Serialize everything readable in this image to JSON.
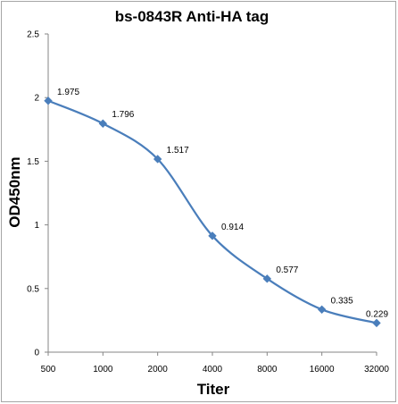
{
  "chart_data": {
    "type": "line",
    "title": "bs-0843R Anti-HA tag",
    "xlabel": "Titer",
    "ylabel": "OD450nm",
    "categories": [
      "500",
      "1000",
      "2000",
      "4000",
      "8000",
      "16000",
      "32000"
    ],
    "series": [
      {
        "values": [
          1.975,
          1.796,
          1.517,
          0.914,
          0.577,
          0.335,
          0.229
        ],
        "labels": [
          "1.975",
          "1.796",
          "1.517",
          "0.914",
          "0.577",
          "0.335",
          "0.229"
        ]
      }
    ],
    "ylim": [
      0,
      2.5
    ],
    "yticks": [
      "0",
      "0.5",
      "1",
      "1.5",
      "2",
      "2.5"
    ],
    "grid": false,
    "legend": "none",
    "line_color": "#4a7ebb",
    "marker": "diamond"
  }
}
